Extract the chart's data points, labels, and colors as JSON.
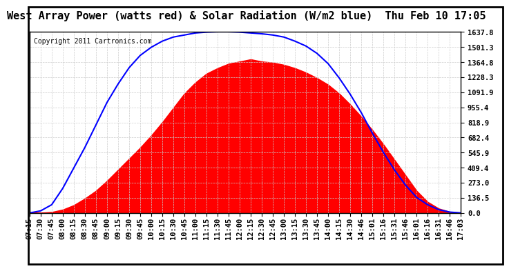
{
  "title": "West Array Power (watts red) & Solar Radiation (W/m2 blue)  Thu Feb 10 17:05",
  "copyright": "Copyright 2011 Cartronics.com",
  "bg_color": "#ffffff",
  "plot_bg_color": "#ffffff",
  "grid_color": "#cccccc",
  "red_fill_color": "#ff0000",
  "blue_line_color": "#0000ff",
  "ymax": 1637.8,
  "ymin": 0.0,
  "yticks": [
    0.0,
    136.5,
    273.0,
    409.4,
    545.9,
    682.4,
    818.9,
    955.4,
    1091.9,
    1228.3,
    1364.8,
    1501.3,
    1637.8
  ],
  "xtick_labels": [
    "07:15",
    "07:30",
    "07:45",
    "08:00",
    "08:15",
    "08:30",
    "08:45",
    "09:00",
    "09:15",
    "09:30",
    "09:45",
    "10:00",
    "10:15",
    "10:30",
    "10:45",
    "11:00",
    "11:15",
    "11:30",
    "11:45",
    "12:00",
    "12:15",
    "12:30",
    "12:45",
    "13:00",
    "13:15",
    "13:30",
    "13:45",
    "14:00",
    "14:15",
    "14:30",
    "14:46",
    "15:01",
    "15:16",
    "15:31",
    "15:46",
    "16:01",
    "16:16",
    "16:31",
    "16:46",
    "17:03"
  ],
  "n_points": 40,
  "power_profile": [
    0,
    2,
    8,
    30,
    70,
    130,
    200,
    290,
    390,
    490,
    590,
    700,
    820,
    950,
    1080,
    1180,
    1260,
    1310,
    1350,
    1370,
    1390,
    1370,
    1360,
    1340,
    1310,
    1270,
    1220,
    1160,
    1080,
    980,
    870,
    750,
    620,
    480,
    340,
    200,
    100,
    40,
    10,
    2
  ],
  "solar_profile": [
    0,
    5,
    20,
    60,
    110,
    160,
    215,
    270,
    315,
    355,
    385,
    405,
    420,
    430,
    435,
    440,
    442,
    443,
    443,
    442,
    440,
    438,
    435,
    430,
    420,
    408,
    390,
    365,
    330,
    290,
    245,
    195,
    148,
    105,
    68,
    38,
    20,
    8,
    2,
    0
  ],
  "solar_scale": 3.7,
  "title_fontsize": 11,
  "tick_fontsize": 7.5,
  "copyright_fontsize": 7
}
